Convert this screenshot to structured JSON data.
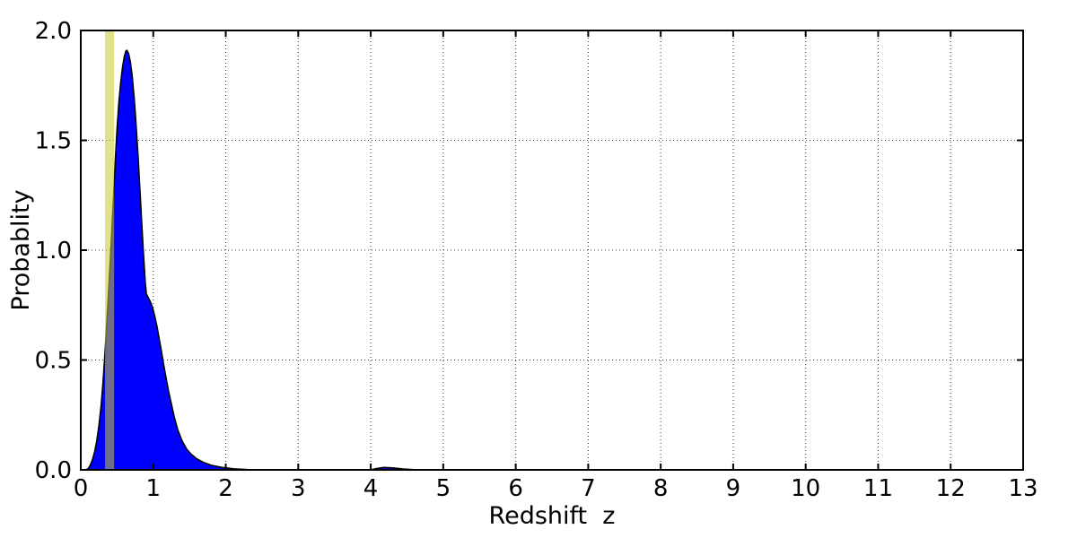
{
  "chart_data": {
    "type": "area",
    "title": "",
    "xlabel": "Redshift  z",
    "ylabel": "Probablity",
    "xlim": [
      0,
      13
    ],
    "ylim": [
      0.0,
      2.0
    ],
    "xticks": {
      "values": [
        0,
        1,
        2,
        3,
        4,
        5,
        6,
        7,
        8,
        9,
        10,
        11,
        12,
        13
      ],
      "labels": [
        "0",
        "1",
        "2",
        "3",
        "4",
        "5",
        "6",
        "7",
        "8",
        "9",
        "10",
        "11",
        "12",
        "13"
      ]
    },
    "yticks": {
      "values": [
        0,
        0.5,
        1.0,
        1.5,
        2.0
      ],
      "labels": [
        "0.0",
        "0.5",
        "1.0",
        "1.5",
        "2.0"
      ]
    },
    "grid": {
      "style": "dotted",
      "color": "#444444",
      "legend": "none"
    },
    "background": "#ffffff",
    "frame_color": "#000000",
    "series": [
      {
        "name": "redshift-probability-density",
        "type": "filled_area",
        "fill_color": "#0000ff",
        "edge_color": "#000000",
        "peak": {
          "x": 0.635,
          "y": 1.91
        },
        "points": [
          [
            0.07,
            0
          ],
          [
            0.1,
            0.005
          ],
          [
            0.13,
            0.02
          ],
          [
            0.16,
            0.045
          ],
          [
            0.19,
            0.08
          ],
          [
            0.22,
            0.13
          ],
          [
            0.25,
            0.2
          ],
          [
            0.28,
            0.29
          ],
          [
            0.305,
            0.39
          ],
          [
            0.33,
            0.51
          ],
          [
            0.355,
            0.645
          ],
          [
            0.375,
            0.76
          ],
          [
            0.395,
            0.88
          ],
          [
            0.415,
            1.0
          ],
          [
            0.435,
            1.13
          ],
          [
            0.455,
            1.26
          ],
          [
            0.475,
            1.4
          ],
          [
            0.5,
            1.55
          ],
          [
            0.525,
            1.67
          ],
          [
            0.55,
            1.76
          ],
          [
            0.575,
            1.83
          ],
          [
            0.6,
            1.88
          ],
          [
            0.62,
            1.905
          ],
          [
            0.635,
            1.91
          ],
          [
            0.66,
            1.895
          ],
          [
            0.685,
            1.855
          ],
          [
            0.71,
            1.79
          ],
          [
            0.74,
            1.68
          ],
          [
            0.765,
            1.56
          ],
          [
            0.79,
            1.43
          ],
          [
            0.815,
            1.28
          ],
          [
            0.84,
            1.13
          ],
          [
            0.86,
            1.01
          ],
          [
            0.875,
            0.93
          ],
          [
            0.89,
            0.85
          ],
          [
            0.905,
            0.8
          ],
          [
            0.93,
            0.785
          ],
          [
            0.96,
            0.765
          ],
          [
            0.99,
            0.74
          ],
          [
            1.02,
            0.7
          ],
          [
            1.05,
            0.655
          ],
          [
            1.08,
            0.6
          ],
          [
            1.11,
            0.545
          ],
          [
            1.14,
            0.485
          ],
          [
            1.17,
            0.43
          ],
          [
            1.21,
            0.36
          ],
          [
            1.25,
            0.3
          ],
          [
            1.29,
            0.24
          ],
          [
            1.34,
            0.18
          ],
          [
            1.4,
            0.13
          ],
          [
            1.46,
            0.095
          ],
          [
            1.52,
            0.072
          ],
          [
            1.6,
            0.05
          ],
          [
            1.7,
            0.033
          ],
          [
            1.8,
            0.021
          ],
          [
            1.95,
            0.011
          ],
          [
            2.1,
            0.005
          ],
          [
            2.3,
            0.0015
          ],
          [
            2.5,
            0
          ],
          [
            4.0,
            0
          ],
          [
            4.08,
            0.006
          ],
          [
            4.18,
            0.011
          ],
          [
            4.3,
            0.009
          ],
          [
            4.45,
            0.004
          ],
          [
            4.6,
            0.001
          ],
          [
            4.7,
            0
          ]
        ]
      },
      {
        "name": "highlight-band",
        "type": "vspan",
        "x0": 0.335,
        "x1": 0.46,
        "color": "#c8c82d",
        "opacity": 0.55
      }
    ]
  }
}
